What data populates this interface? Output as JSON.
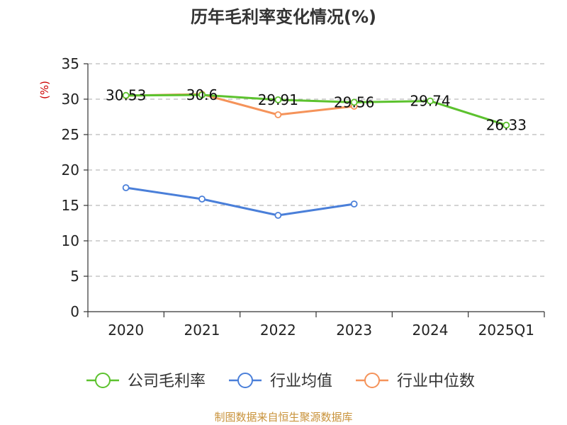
{
  "chart_data": {
    "type": "line",
    "title": "历年毛利率变化情况(%)",
    "ylabel": "(%)",
    "xlabel": "",
    "ylim": [
      0,
      35
    ],
    "yticks": [
      0,
      5,
      10,
      15,
      20,
      25,
      30,
      35
    ],
    "categories": [
      "2020",
      "2021",
      "2022",
      "2023",
      "2024",
      "2025Q1"
    ],
    "grid": true,
    "legend_position": "bottom",
    "series": [
      {
        "name": "公司毛利率",
        "color": "#5cc22e",
        "values": [
          30.53,
          30.6,
          29.91,
          29.56,
          29.74,
          26.33
        ],
        "labels": [
          "30.53",
          "30.6",
          "29.91",
          "29.56",
          "29.74",
          "26.33"
        ]
      },
      {
        "name": "行业均值",
        "color": "#4a7fd9",
        "values": [
          17.5,
          15.9,
          13.6,
          15.2,
          null,
          null
        ],
        "labels": []
      },
      {
        "name": "行业中位数",
        "color": "#f5935a",
        "values": [
          30.5,
          30.7,
          27.8,
          29.0,
          null,
          null
        ],
        "labels": []
      }
    ],
    "source": "制图数据来自恒生聚源数据库"
  }
}
